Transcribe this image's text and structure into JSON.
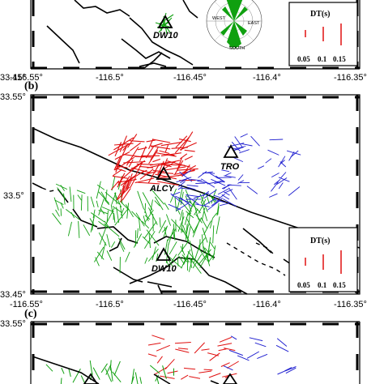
{
  "colors": {
    "green": "#10a010",
    "red": "#e01010",
    "blue": "#2020d0",
    "fault": "#000000"
  },
  "panel_a": {
    "station": "DW10",
    "rose_labels": {
      "west": "WEST",
      "east": "EAST",
      "south": "SOUTH"
    },
    "legend": {
      "title": "DT(s)",
      "values": [
        "0.05",
        "0.1",
        "0.15"
      ]
    },
    "x_ticks": [
      "-116.55°",
      "-116.5°",
      "-116.45°",
      "-116.4°",
      "-116.35°"
    ],
    "y_tick_bottom": "33.45°"
  },
  "panel_b": {
    "label": "(b)",
    "stations": [
      "TRO",
      "ALCY",
      "DW10"
    ],
    "legend": {
      "title": "DT(s)",
      "values": [
        "0.05",
        "0.1",
        "0.15"
      ]
    },
    "y_ticks": [
      "33.55°",
      "33.5°",
      "33.45°"
    ],
    "x_ticks": [
      "-116.55°",
      "-116.5°",
      "-116.45°",
      "-116.4°",
      "-116.35°"
    ]
  },
  "panel_c": {
    "label": "(c)",
    "y_ticks": [
      "33.55°"
    ]
  }
}
